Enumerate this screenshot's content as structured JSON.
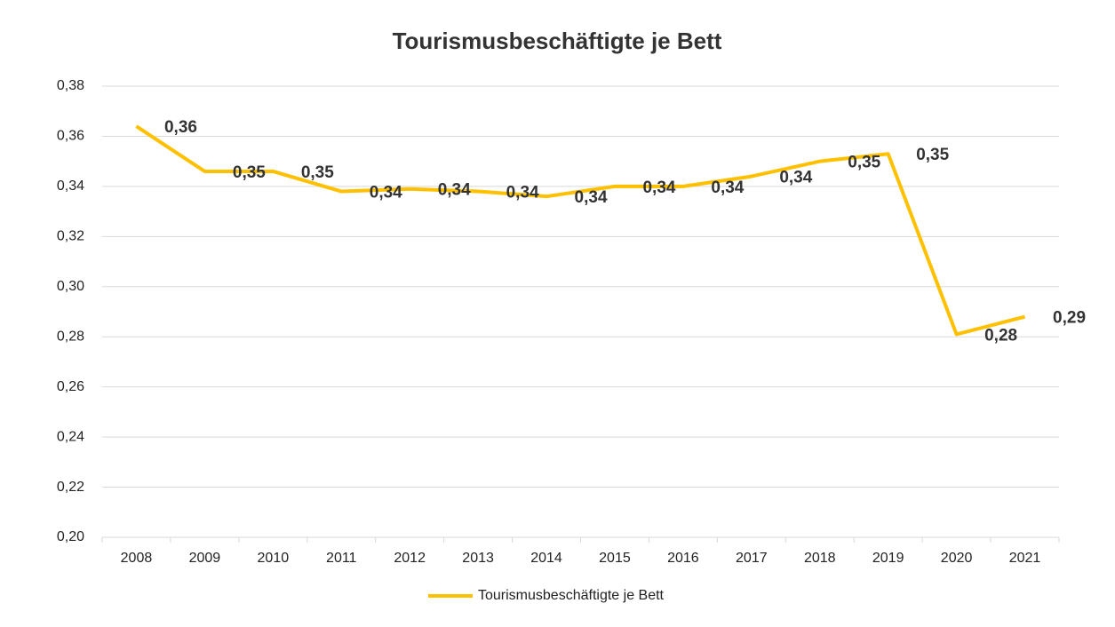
{
  "chart_data": {
    "type": "line",
    "title": "Tourismusbeschäftigte je Bett",
    "categories": [
      "2008",
      "2009",
      "2010",
      "2011",
      "2012",
      "2013",
      "2014",
      "2015",
      "2016",
      "2017",
      "2018",
      "2019",
      "2020",
      "2021"
    ],
    "series": [
      {
        "name": "Tourismusbeschäftigte je Bett",
        "color": "#ffc000",
        "values": [
          0.364,
          0.346,
          0.346,
          0.338,
          0.339,
          0.338,
          0.336,
          0.34,
          0.34,
          0.344,
          0.35,
          0.353,
          0.281,
          0.288
        ],
        "value_labels": [
          "0,36",
          "0,35",
          "0,35",
          "0,34",
          "0,34",
          "0,34",
          "0,34",
          "0,34",
          "0,34",
          "0,34",
          "0,35",
          "0,35",
          "0,28",
          "0,29"
        ]
      }
    ],
    "ylim": [
      0.2,
      0.38
    ],
    "yticks": [
      {
        "value": 0.2,
        "label": "0,20"
      },
      {
        "value": 0.22,
        "label": "0,22"
      },
      {
        "value": 0.24,
        "label": "0,24"
      },
      {
        "value": 0.26,
        "label": "0,26"
      },
      {
        "value": 0.28,
        "label": "0,28"
      },
      {
        "value": 0.3,
        "label": "0,30"
      },
      {
        "value": 0.32,
        "label": "0,32"
      },
      {
        "value": 0.34,
        "label": "0,34"
      },
      {
        "value": 0.36,
        "label": "0,36"
      },
      {
        "value": 0.38,
        "label": "0,38"
      }
    ],
    "grid": true,
    "legend": "bottom"
  }
}
